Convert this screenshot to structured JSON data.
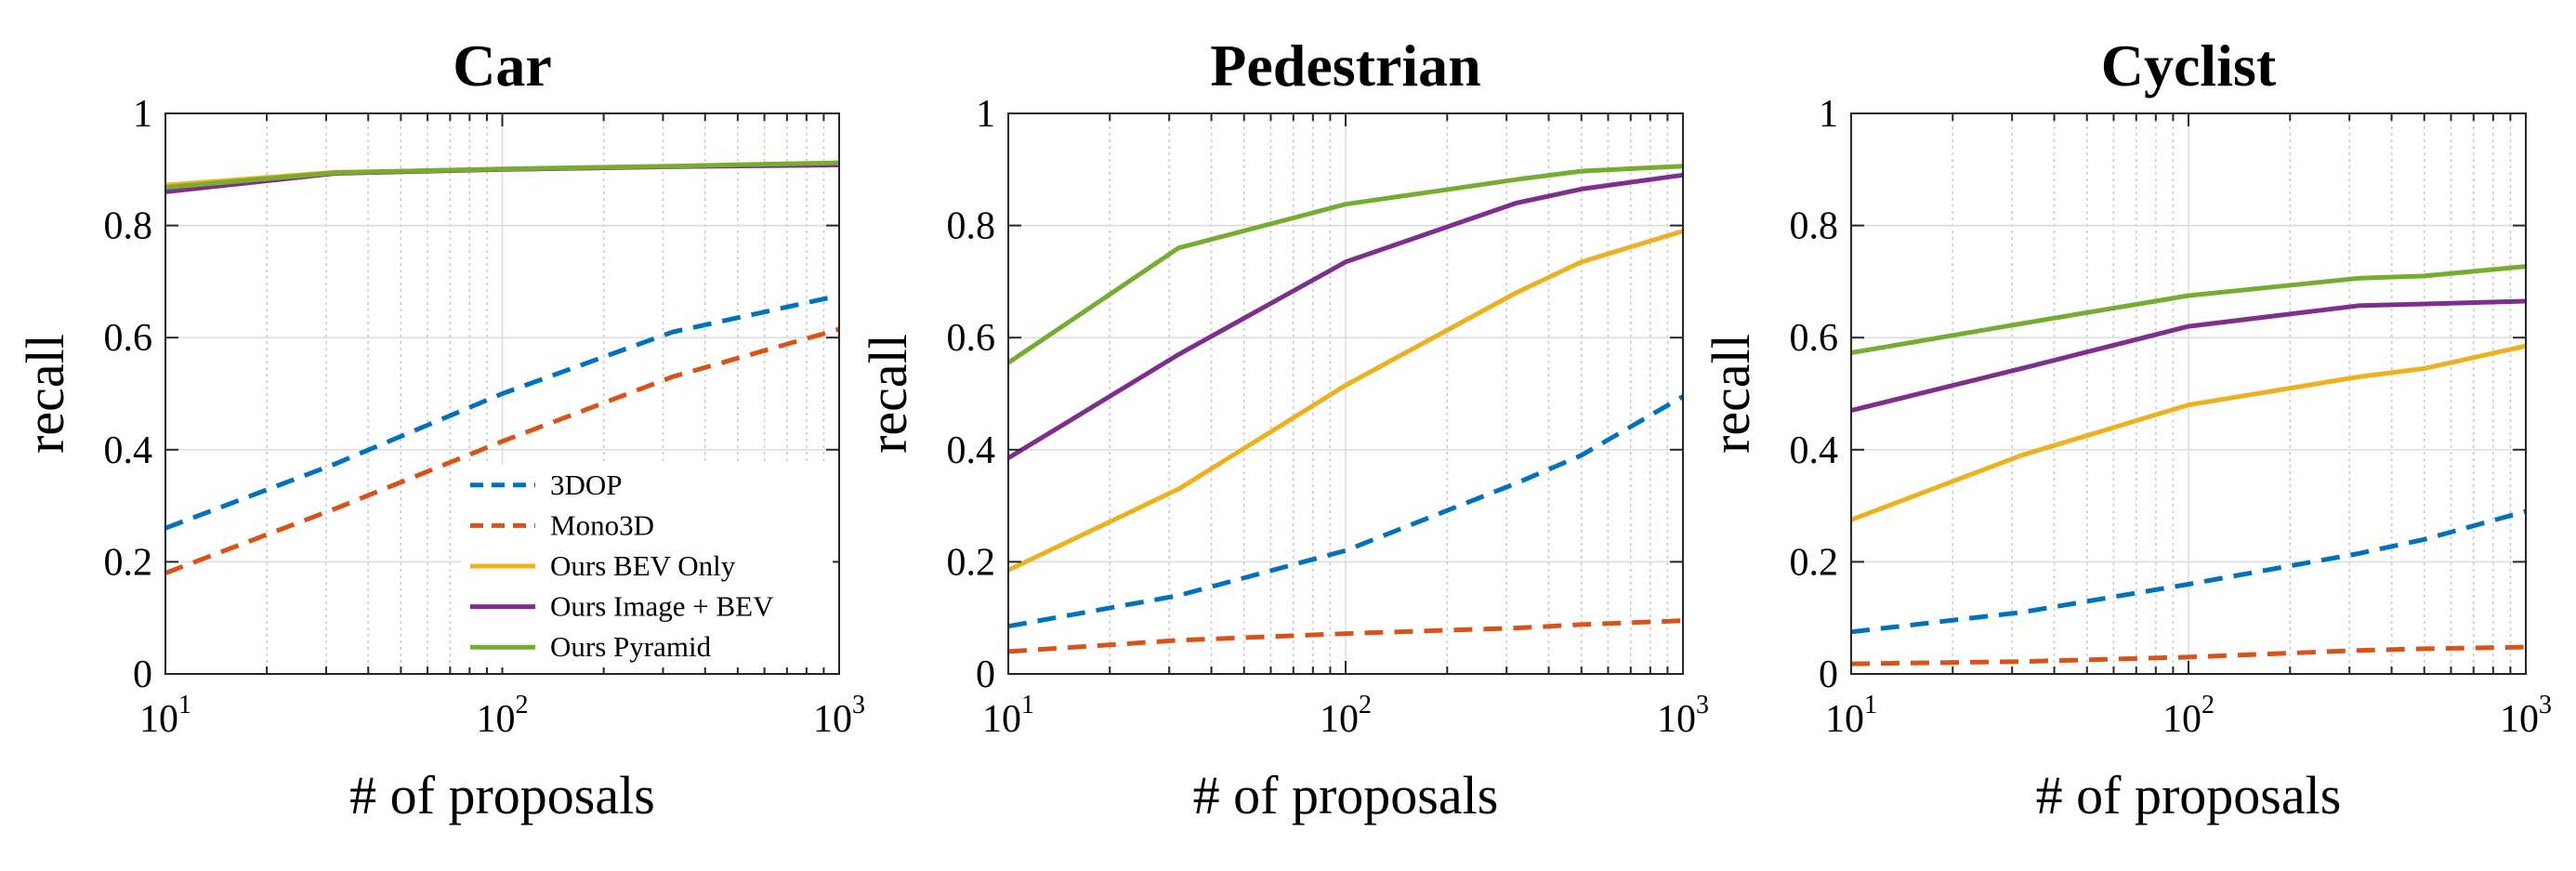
{
  "chart_data": [
    {
      "type": "line",
      "title": "Car",
      "xlabel": "# of proposals",
      "ylabel": "recall",
      "xscale": "log",
      "xlim": [
        10,
        1000
      ],
      "ylim": [
        0,
        1
      ],
      "xticks": [
        {
          "base": "10",
          "exp": "1"
        },
        {
          "base": "10",
          "exp": "2"
        },
        {
          "base": "10",
          "exp": "3"
        }
      ],
      "yticks": [
        "0",
        "0.2",
        "0.4",
        "0.6",
        "0.8",
        "1"
      ],
      "grid": true,
      "legend_position": "bottom-right",
      "series": [
        {
          "name": "3DOP",
          "color": "#0072BD",
          "dash": "dashed",
          "x": [
            10,
            32,
            100,
            320,
            1000
          ],
          "y": [
            0.26,
            0.375,
            0.5,
            0.61,
            0.675
          ]
        },
        {
          "name": "Mono3D",
          "color": "#D95319",
          "dash": "dashed",
          "x": [
            10,
            32,
            100,
            320,
            1000
          ],
          "y": [
            0.18,
            0.295,
            0.415,
            0.53,
            0.615
          ]
        },
        {
          "name": "Ours BEV Only",
          "color": "#EDB120",
          "dash": "solid",
          "x": [
            10,
            32,
            100,
            320,
            1000
          ],
          "y": [
            0.872,
            0.895,
            0.9,
            0.905,
            0.91
          ]
        },
        {
          "name": "Ours Image + BEV",
          "color": "#7E2F8E",
          "dash": "solid",
          "x": [
            10,
            32,
            100,
            320,
            1000
          ],
          "y": [
            0.86,
            0.893,
            0.9,
            0.905,
            0.908
          ]
        },
        {
          "name": "Ours Pyramid",
          "color": "#77AC30",
          "dash": "solid",
          "x": [
            10,
            32,
            100,
            320,
            1000
          ],
          "y": [
            0.868,
            0.894,
            0.901,
            0.906,
            0.912
          ]
        }
      ]
    },
    {
      "type": "line",
      "title": "Pedestrian",
      "xlabel": "# of proposals",
      "ylabel": "recall",
      "xscale": "log",
      "xlim": [
        10,
        1000
      ],
      "ylim": [
        0,
        1
      ],
      "xticks": [
        {
          "base": "10",
          "exp": "1"
        },
        {
          "base": "10",
          "exp": "2"
        },
        {
          "base": "10",
          "exp": "3"
        }
      ],
      "yticks": [
        "0",
        "0.2",
        "0.4",
        "0.6",
        "0.8",
        "1"
      ],
      "grid": true,
      "series": [
        {
          "name": "3DOP",
          "color": "#0072BD",
          "dash": "dashed",
          "x": [
            10,
            32,
            100,
            320,
            500,
            1000
          ],
          "y": [
            0.085,
            0.14,
            0.22,
            0.34,
            0.39,
            0.495
          ]
        },
        {
          "name": "Mono3D",
          "color": "#D95319",
          "dash": "dashed",
          "x": [
            10,
            32,
            100,
            320,
            500,
            1000
          ],
          "y": [
            0.04,
            0.06,
            0.072,
            0.082,
            0.088,
            0.095
          ]
        },
        {
          "name": "Ours BEV Only",
          "color": "#EDB120",
          "dash": "solid",
          "x": [
            10,
            32,
            100,
            320,
            500,
            1000
          ],
          "y": [
            0.185,
            0.33,
            0.515,
            0.68,
            0.735,
            0.79
          ]
        },
        {
          "name": "Ours Image + BEV",
          "color": "#7E2F8E",
          "dash": "solid",
          "x": [
            10,
            32,
            100,
            320,
            500,
            1000
          ],
          "y": [
            0.385,
            0.57,
            0.735,
            0.84,
            0.865,
            0.89
          ]
        },
        {
          "name": "Ours Pyramid",
          "color": "#77AC30",
          "dash": "solid",
          "x": [
            10,
            32,
            100,
            320,
            500,
            1000
          ],
          "y": [
            0.555,
            0.76,
            0.838,
            0.882,
            0.897,
            0.906
          ]
        }
      ]
    },
    {
      "type": "line",
      "title": "Cyclist",
      "xlabel": "# of proposals",
      "ylabel": "recall",
      "xscale": "log",
      "xlim": [
        10,
        1000
      ],
      "ylim": [
        0,
        1
      ],
      "xticks": [
        {
          "base": "10",
          "exp": "1"
        },
        {
          "base": "10",
          "exp": "2"
        },
        {
          "base": "10",
          "exp": "3"
        }
      ],
      "yticks": [
        "0",
        "0.2",
        "0.4",
        "0.6",
        "0.8",
        "1"
      ],
      "grid": true,
      "series": [
        {
          "name": "3DOP",
          "color": "#0072BD",
          "dash": "dashed",
          "x": [
            10,
            32,
            100,
            320,
            500,
            1000
          ],
          "y": [
            0.075,
            0.11,
            0.16,
            0.215,
            0.24,
            0.29
          ]
        },
        {
          "name": "Mono3D",
          "color": "#D95319",
          "dash": "dashed",
          "x": [
            10,
            32,
            100,
            320,
            500,
            1000
          ],
          "y": [
            0.018,
            0.022,
            0.03,
            0.042,
            0.045,
            0.048
          ]
        },
        {
          "name": "Ours BEV Only",
          "color": "#EDB120",
          "dash": "solid",
          "x": [
            10,
            32,
            100,
            320,
            500,
            1000
          ],
          "y": [
            0.275,
            0.39,
            0.48,
            0.53,
            0.545,
            0.585
          ]
        },
        {
          "name": "Ours Image + BEV",
          "color": "#7E2F8E",
          "dash": "solid",
          "x": [
            10,
            32,
            100,
            320,
            500,
            1000
          ],
          "y": [
            0.47,
            0.545,
            0.62,
            0.657,
            0.66,
            0.665
          ]
        },
        {
          "name": "Ours Pyramid",
          "color": "#77AC30",
          "dash": "solid",
          "x": [
            10,
            32,
            100,
            320,
            500,
            1000
          ],
          "y": [
            0.573,
            0.625,
            0.675,
            0.706,
            0.71,
            0.727
          ]
        }
      ]
    }
  ]
}
